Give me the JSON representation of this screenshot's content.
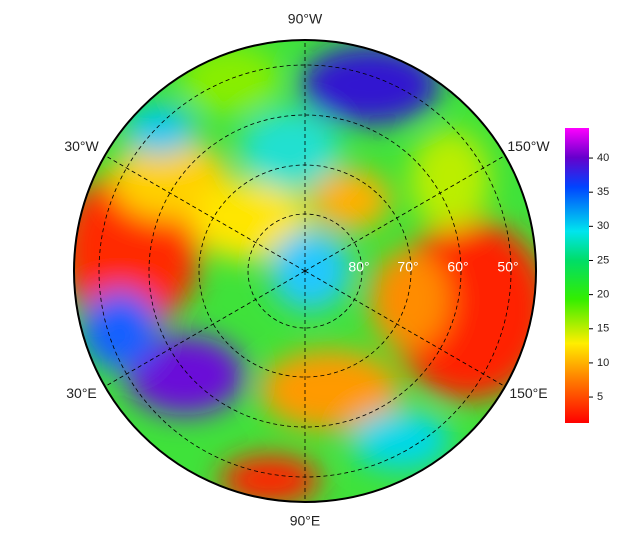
{
  "map": {
    "meridian_labels": [
      {
        "label": "90°W",
        "angle": 90
      },
      {
        "label": "30°W",
        "angle": 150
      },
      {
        "label": "150°W",
        "angle": 30
      },
      {
        "label": "30°E",
        "angle": 210
      },
      {
        "label": "150°E",
        "angle": 330
      },
      {
        "label": "90°E",
        "angle": 270
      }
    ],
    "parallel_labels": [
      "80°",
      "70°",
      "60°",
      "50°"
    ],
    "colorbar": {
      "lim": [
        1.2,
        44.4
      ],
      "ticks": [
        5,
        10,
        15,
        20,
        25,
        30,
        35,
        40
      ]
    }
  }
}
